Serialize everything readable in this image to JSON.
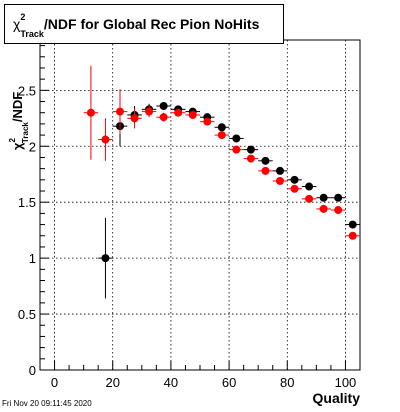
{
  "title": {
    "chi": "χ",
    "sup": "2",
    "sub": "Track",
    "rest": "/NDF for Global Rec Pion NoHits"
  },
  "xlabel": "Quality",
  "ylabel": {
    "chi": "χ",
    "sup": "2",
    "sub": "Track",
    "rest": "/NDF"
  },
  "footer": "Fri Nov 20 09:11:45 2020",
  "chart_data": {
    "type": "scatter",
    "title": "χ²_Track/NDF for Global Rec Pion NoHits",
    "xlabel": "Quality",
    "ylabel": "χ²_Track/NDF",
    "xlim": [
      -5,
      105
    ],
    "ylim": [
      0,
      2.95
    ],
    "xticks": [
      0,
      20,
      40,
      60,
      80,
      100
    ],
    "xtick_labels": [
      "0",
      "20",
      "40",
      "60",
      "80",
      "100"
    ],
    "yticks": [
      0,
      0.5,
      1,
      1.5,
      2,
      2.5
    ],
    "ytick_labels": [
      "0",
      "0.5",
      "1",
      "1.5",
      "2",
      "2.5"
    ],
    "grid": true,
    "series": [
      {
        "color": "#000000",
        "points": [
          {
            "x": 17.5,
            "y": 1.0,
            "yerr": 0.36
          },
          {
            "x": 22.5,
            "y": 2.18,
            "yerr": 0.18
          },
          {
            "x": 27.5,
            "y": 2.28,
            "yerr": 0.08
          },
          {
            "x": 32.5,
            "y": 2.33,
            "yerr": 0.05
          },
          {
            "x": 37.5,
            "y": 2.36,
            "yerr": 0.03
          },
          {
            "x": 42.5,
            "y": 2.33,
            "yerr": 0.02
          },
          {
            "x": 47.5,
            "y": 2.31,
            "yerr": 0.02
          },
          {
            "x": 52.5,
            "y": 2.26,
            "yerr": 0.02
          },
          {
            "x": 57.5,
            "y": 2.17,
            "yerr": 0.02
          },
          {
            "x": 62.5,
            "y": 2.07,
            "yerr": 0.02
          },
          {
            "x": 67.5,
            "y": 1.97,
            "yerr": 0.02
          },
          {
            "x": 72.5,
            "y": 1.87,
            "yerr": 0.02
          },
          {
            "x": 77.5,
            "y": 1.78,
            "yerr": 0.02
          },
          {
            "x": 82.5,
            "y": 1.7,
            "yerr": 0.02
          },
          {
            "x": 87.5,
            "y": 1.64,
            "yerr": 0.02
          },
          {
            "x": 92.5,
            "y": 1.54,
            "yerr": 0.02
          },
          {
            "x": 97.5,
            "y": 1.54,
            "yerr": 0.02
          },
          {
            "x": 102.5,
            "y": 1.3,
            "yerr": 0.02
          }
        ]
      },
      {
        "color": "#ff0000",
        "points": [
          {
            "x": 12.5,
            "y": 2.3,
            "yerr": 0.42
          },
          {
            "x": 17.5,
            "y": 2.06,
            "yerr": 0.19
          },
          {
            "x": 22.5,
            "y": 2.31,
            "yerr": 0.2
          },
          {
            "x": 27.5,
            "y": 2.25,
            "yerr": 0.09
          },
          {
            "x": 32.5,
            "y": 2.31,
            "yerr": 0.05
          },
          {
            "x": 37.5,
            "y": 2.26,
            "yerr": 0.04
          },
          {
            "x": 42.5,
            "y": 2.3,
            "yerr": 0.03
          },
          {
            "x": 47.5,
            "y": 2.28,
            "yerr": 0.02
          },
          {
            "x": 52.5,
            "y": 2.22,
            "yerr": 0.02
          },
          {
            "x": 57.5,
            "y": 2.1,
            "yerr": 0.02
          },
          {
            "x": 62.5,
            "y": 1.97,
            "yerr": 0.02
          },
          {
            "x": 67.5,
            "y": 1.89,
            "yerr": 0.02
          },
          {
            "x": 72.5,
            "y": 1.78,
            "yerr": 0.02
          },
          {
            "x": 77.5,
            "y": 1.69,
            "yerr": 0.02
          },
          {
            "x": 82.5,
            "y": 1.62,
            "yerr": 0.02
          },
          {
            "x": 87.5,
            "y": 1.53,
            "yerr": 0.02
          },
          {
            "x": 92.5,
            "y": 1.44,
            "yerr": 0.02
          },
          {
            "x": 97.5,
            "y": 1.43,
            "yerr": 0.02
          },
          {
            "x": 102.5,
            "y": 1.2,
            "yerr": 0.02
          }
        ]
      }
    ]
  }
}
